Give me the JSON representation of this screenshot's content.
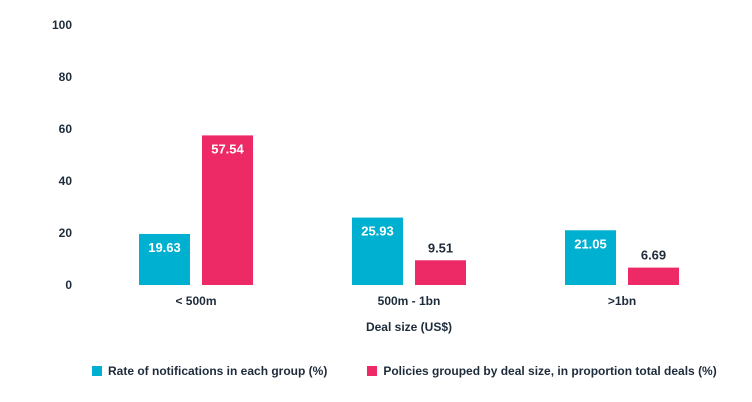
{
  "chart_data": {
    "type": "bar",
    "categories": [
      "< 500m",
      "500m - 1bn",
      ">1bn"
    ],
    "series": [
      {
        "name": "Rate of notifications in each group (%)",
        "values": [
          19.63,
          25.93,
          21.05
        ],
        "color": "#00b0d0"
      },
      {
        "name": "Policies grouped by deal size, in proportion total deals (%)",
        "values": [
          57.54,
          9.51,
          6.69
        ],
        "color": "#ee2a66"
      }
    ],
    "data_labels": [
      [
        "19.63",
        "25.93",
        "21.05"
      ],
      [
        "57.54",
        "9.51",
        "6.69"
      ]
    ],
    "yticks": [
      "0",
      "20",
      "40",
      "60",
      "80",
      "100"
    ],
    "title": "",
    "xlabel": "Deal size (US$)",
    "ylabel": "",
    "ylim": [
      0,
      100
    ],
    "grid": false,
    "legend_position": "bottom"
  }
}
